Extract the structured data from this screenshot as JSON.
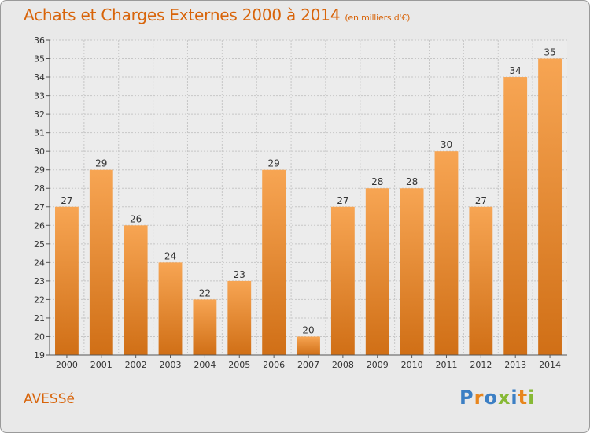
{
  "header": {
    "title": "Achats et Charges Externes 2000 à 2014",
    "subtitle": "(en milliers d'€)"
  },
  "footer": {
    "city": "AVESSé",
    "brand": "Proxiti"
  },
  "colors": {
    "bar_light": "#f7a553",
    "bar_dark": "#d06f16",
    "title": "#d8640a",
    "background": "#e9e9e9",
    "brand_letters": [
      "#3c7fc4",
      "#e8861e",
      "#3c7fc4",
      "#87b935",
      "#3c7fc4",
      "#e8861e",
      "#87b935"
    ]
  },
  "chart_data": {
    "type": "bar",
    "title": "Achats et Charges Externes 2000 à 2014",
    "categories": [
      "2000",
      "2001",
      "2002",
      "2003",
      "2004",
      "2005",
      "2006",
      "2007",
      "2008",
      "2009",
      "2010",
      "2011",
      "2012",
      "2013",
      "2014"
    ],
    "values": [
      27,
      29,
      26,
      24,
      22,
      23,
      29,
      20,
      27,
      28,
      28,
      30,
      27,
      34,
      35
    ],
    "ylim": [
      19,
      36
    ],
    "yticks": [
      19,
      20,
      21,
      22,
      23,
      24,
      25,
      26,
      27,
      28,
      29,
      30,
      31,
      32,
      33,
      34,
      35,
      36
    ],
    "grid": true,
    "xlabel": "",
    "ylabel": ""
  }
}
